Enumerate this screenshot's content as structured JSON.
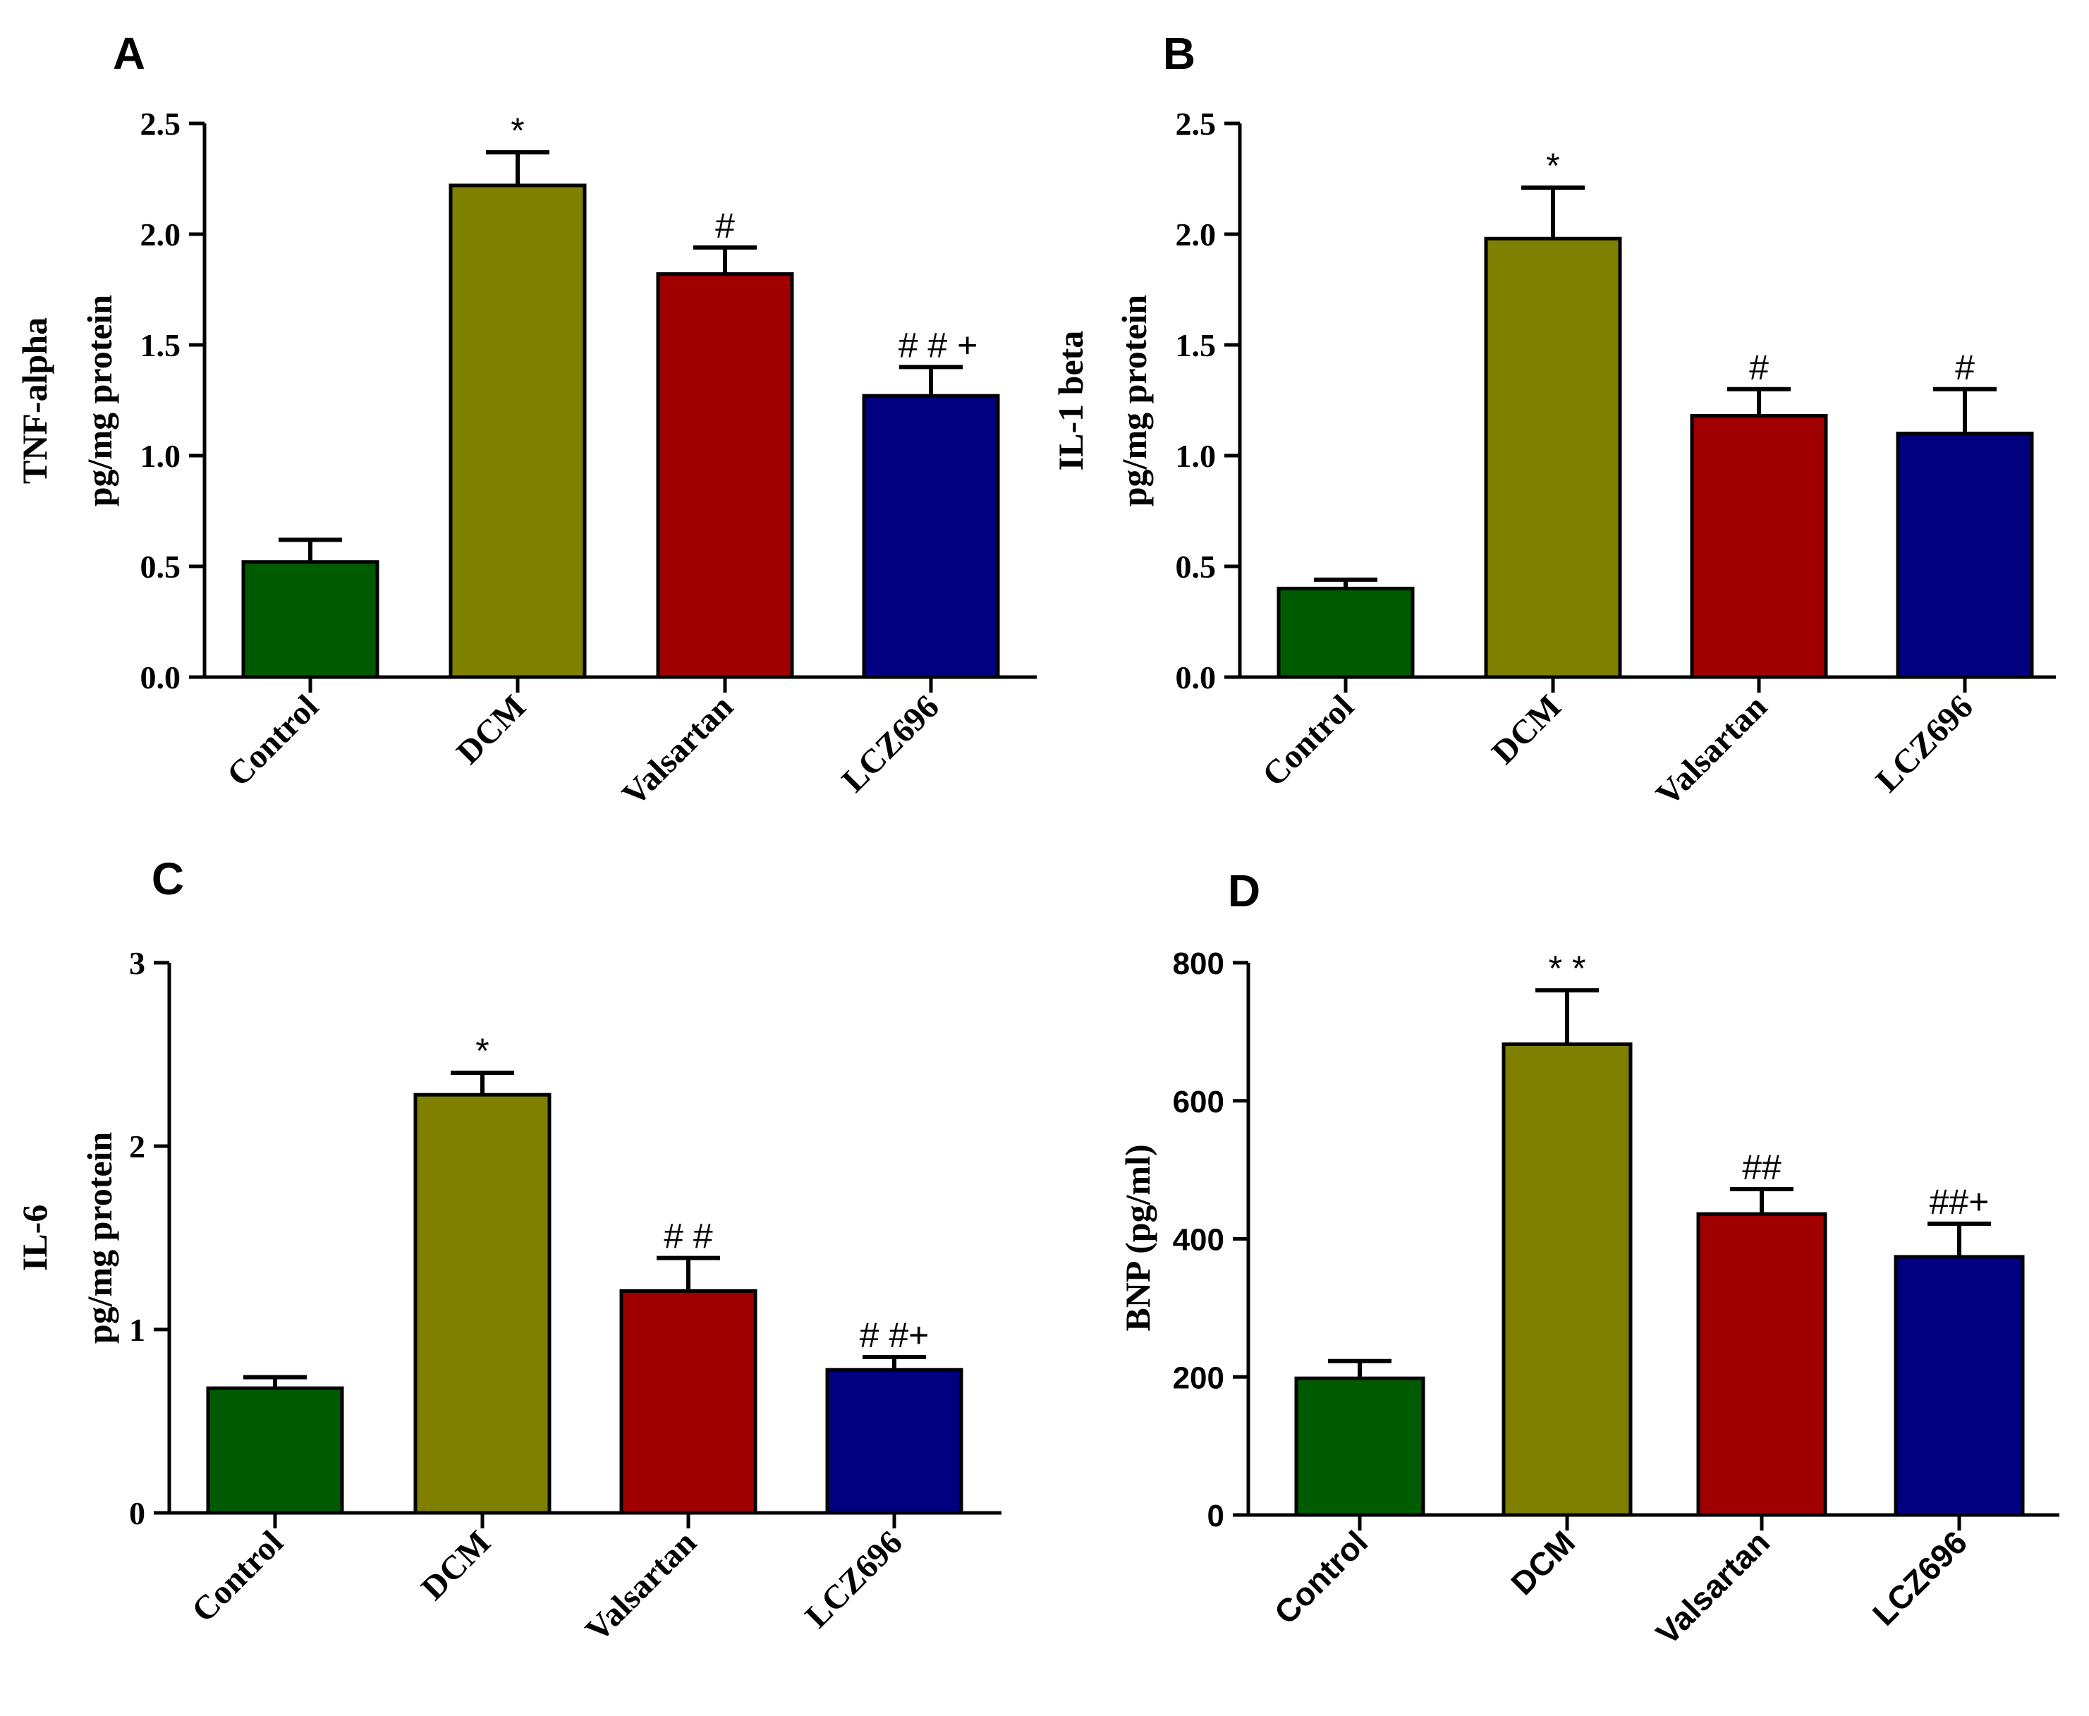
{
  "colors": {
    "Control": "#005a00",
    "DCM": "#7f7f00",
    "Valsartan": "#a00000",
    "LCZ696": "#000080"
  },
  "chart_data": [
    {
      "panel": "A",
      "type": "bar",
      "categories": [
        "Control",
        "DCM",
        "Valsartan",
        "LCZ696"
      ],
      "values": [
        0.52,
        2.22,
        1.82,
        1.27
      ],
      "errors": [
        0.1,
        0.15,
        0.12,
        0.13
      ],
      "significance": [
        "",
        "*",
        "#",
        "# # +"
      ],
      "ylabel": [
        "TNF-alpha",
        "pg/mg protein"
      ],
      "ylim": [
        0,
        2.5
      ],
      "yticks": [
        "0.0",
        "0.5",
        "1.0",
        "1.5",
        "2.0",
        "2.5"
      ],
      "ytick_values": [
        0,
        0.5,
        1,
        1.5,
        2,
        2.5
      ]
    },
    {
      "panel": "B",
      "type": "bar",
      "categories": [
        "Control",
        "DCM",
        "Valsartan",
        "LCZ696"
      ],
      "values": [
        0.4,
        1.98,
        1.18,
        1.1
      ],
      "errors": [
        0.04,
        0.23,
        0.12,
        0.2
      ],
      "significance": [
        "",
        "*",
        "#",
        "#"
      ],
      "ylabel": [
        "IL-1 beta",
        "pg/mg protein"
      ],
      "ylim": [
        0,
        2.5
      ],
      "yticks": [
        "0.0",
        "0.5",
        "1.0",
        "1.5",
        "2.0",
        "2.5"
      ],
      "ytick_values": [
        0,
        0.5,
        1,
        1.5,
        2,
        2.5
      ]
    },
    {
      "panel": "C",
      "type": "bar",
      "categories": [
        "Control",
        "DCM",
        "Valsartan",
        "LCZ696"
      ],
      "values": [
        0.68,
        2.28,
        1.21,
        0.78
      ],
      "errors": [
        0.06,
        0.12,
        0.18,
        0.07
      ],
      "significance": [
        "",
        "*",
        "# #",
        "# #+"
      ],
      "ylabel": [
        "IL-6",
        "pg/mg protein"
      ],
      "ylim": [
        0,
        3
      ],
      "yticks": [
        "0",
        "1",
        "2",
        "3"
      ],
      "ytick_values": [
        0,
        1,
        2,
        3
      ]
    },
    {
      "panel": "D",
      "type": "bar",
      "categories": [
        "Control",
        "DCM",
        "Valsartan",
        "LCZ696"
      ],
      "values": [
        198,
        682,
        436,
        374
      ],
      "errors": [
        25,
        78,
        36,
        48
      ],
      "significance": [
        "",
        "* *",
        "##",
        "##+"
      ],
      "ylabel": [
        "BNP (pg/ml)"
      ],
      "ylim": [
        0,
        800
      ],
      "yticks": [
        "0",
        "200",
        "400",
        "600",
        "800"
      ],
      "ytick_values": [
        0,
        200,
        400,
        600,
        800
      ]
    }
  ]
}
